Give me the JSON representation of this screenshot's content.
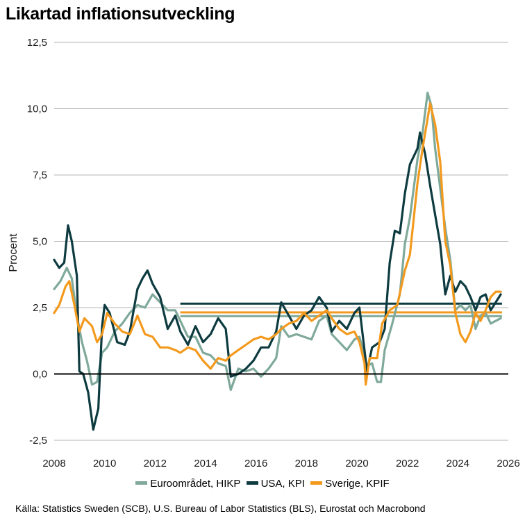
{
  "title": "Likartad inflationsutveckling",
  "source": "Källa: Statistics Sweden (SCB), U.S. Bureau of Labor Statistics (BLS), Eurostat och Macrobond",
  "chart_data": {
    "type": "line",
    "ylabel": "Procent",
    "xlabel": "",
    "xlim": [
      2008,
      2026
    ],
    "ylim": [
      -2.5,
      12.5
    ],
    "x_ticks": [
      "2008",
      "2010",
      "2012",
      "2014",
      "2016",
      "2018",
      "2020",
      "2022",
      "2024",
      "2026"
    ],
    "y_ticks": [
      "12,5",
      "10,0",
      "7,5",
      "5,0",
      "2,5",
      "0,0",
      "-2,5"
    ],
    "grid": "horizontal",
    "legend_position": "bottom",
    "series": [
      {
        "name": "Euroområdet, HIKP",
        "color": "#7fa99a",
        "points": [
          [
            2008.0,
            3.2
          ],
          [
            2008.25,
            3.5
          ],
          [
            2008.5,
            4.0
          ],
          [
            2008.7,
            3.6
          ],
          [
            2008.9,
            2.2
          ],
          [
            2009.1,
            1.2
          ],
          [
            2009.3,
            0.5
          ],
          [
            2009.5,
            -0.4
          ],
          [
            2009.7,
            -0.3
          ],
          [
            2009.9,
            0.8
          ],
          [
            2010.1,
            1.0
          ],
          [
            2010.4,
            1.6
          ],
          [
            2010.7,
            1.9
          ],
          [
            2011.0,
            2.3
          ],
          [
            2011.3,
            2.6
          ],
          [
            2011.6,
            2.5
          ],
          [
            2011.9,
            3.0
          ],
          [
            2012.2,
            2.7
          ],
          [
            2012.5,
            2.4
          ],
          [
            2012.8,
            2.4
          ],
          [
            2013.0,
            2.0
          ],
          [
            2013.3,
            1.4
          ],
          [
            2013.6,
            1.4
          ],
          [
            2013.9,
            0.8
          ],
          [
            2014.2,
            0.7
          ],
          [
            2014.5,
            0.4
          ],
          [
            2014.8,
            0.3
          ],
          [
            2015.0,
            -0.6
          ],
          [
            2015.3,
            0.2
          ],
          [
            2015.6,
            0.1
          ],
          [
            2015.9,
            0.2
          ],
          [
            2016.2,
            -0.1
          ],
          [
            2016.5,
            0.2
          ],
          [
            2016.8,
            0.6
          ],
          [
            2017.0,
            1.8
          ],
          [
            2017.3,
            1.4
          ],
          [
            2017.6,
            1.5
          ],
          [
            2017.9,
            1.4
          ],
          [
            2018.2,
            1.3
          ],
          [
            2018.5,
            2.0
          ],
          [
            2018.8,
            2.2
          ],
          [
            2019.0,
            1.5
          ],
          [
            2019.3,
            1.2
          ],
          [
            2019.6,
            0.9
          ],
          [
            2019.9,
            1.3
          ],
          [
            2020.1,
            1.4
          ],
          [
            2020.4,
            0.3
          ],
          [
            2020.6,
            0.4
          ],
          [
            2020.8,
            -0.3
          ],
          [
            2020.95,
            -0.3
          ],
          [
            2021.1,
            0.9
          ],
          [
            2021.4,
            1.9
          ],
          [
            2021.7,
            3.0
          ],
          [
            2021.9,
            4.9
          ],
          [
            2022.1,
            5.9
          ],
          [
            2022.4,
            8.1
          ],
          [
            2022.6,
            9.1
          ],
          [
            2022.8,
            10.6
          ],
          [
            2022.95,
            10.1
          ],
          [
            2023.1,
            8.5
          ],
          [
            2023.3,
            7.0
          ],
          [
            2023.5,
            5.5
          ],
          [
            2023.7,
            4.3
          ],
          [
            2023.9,
            2.4
          ],
          [
            2024.1,
            2.6
          ],
          [
            2024.3,
            2.4
          ],
          [
            2024.5,
            2.6
          ],
          [
            2024.7,
            1.7
          ],
          [
            2024.9,
            2.2
          ],
          [
            2025.1,
            2.3
          ],
          [
            2025.3,
            1.9
          ],
          [
            2025.5,
            2.0
          ],
          [
            2025.7,
            2.1
          ]
        ]
      },
      {
        "name": "USA, KPI",
        "color": "#0d3b40",
        "points": [
          [
            2008.0,
            4.3
          ],
          [
            2008.2,
            4.0
          ],
          [
            2008.4,
            4.2
          ],
          [
            2008.55,
            5.6
          ],
          [
            2008.7,
            5.0
          ],
          [
            2008.9,
            3.7
          ],
          [
            2009.0,
            0.1
          ],
          [
            2009.15,
            0.0
          ],
          [
            2009.35,
            -0.7
          ],
          [
            2009.55,
            -2.1
          ],
          [
            2009.75,
            -1.3
          ],
          [
            2009.9,
            1.8
          ],
          [
            2010.0,
            2.6
          ],
          [
            2010.2,
            2.3
          ],
          [
            2010.5,
            1.2
          ],
          [
            2010.8,
            1.1
          ],
          [
            2011.0,
            1.6
          ],
          [
            2011.3,
            3.2
          ],
          [
            2011.5,
            3.6
          ],
          [
            2011.7,
            3.9
          ],
          [
            2011.9,
            3.4
          ],
          [
            2012.2,
            2.9
          ],
          [
            2012.5,
            1.7
          ],
          [
            2012.8,
            2.2
          ],
          [
            2013.0,
            1.6
          ],
          [
            2013.3,
            1.1
          ],
          [
            2013.6,
            1.8
          ],
          [
            2013.9,
            1.2
          ],
          [
            2014.2,
            1.5
          ],
          [
            2014.5,
            2.1
          ],
          [
            2014.8,
            1.7
          ],
          [
            2015.0,
            -0.1
          ],
          [
            2015.3,
            0.0
          ],
          [
            2015.6,
            0.2
          ],
          [
            2015.9,
            0.5
          ],
          [
            2016.2,
            1.0
          ],
          [
            2016.5,
            1.0
          ],
          [
            2016.8,
            1.6
          ],
          [
            2017.0,
            2.7
          ],
          [
            2017.3,
            2.2
          ],
          [
            2017.6,
            1.7
          ],
          [
            2017.9,
            2.2
          ],
          [
            2018.2,
            2.4
          ],
          [
            2018.5,
            2.9
          ],
          [
            2018.8,
            2.5
          ],
          [
            2019.0,
            1.6
          ],
          [
            2019.3,
            2.0
          ],
          [
            2019.6,
            1.7
          ],
          [
            2019.9,
            2.3
          ],
          [
            2020.1,
            2.5
          ],
          [
            2020.4,
            0.1
          ],
          [
            2020.6,
            1.0
          ],
          [
            2020.9,
            1.2
          ],
          [
            2021.1,
            1.7
          ],
          [
            2021.3,
            4.2
          ],
          [
            2021.5,
            5.4
          ],
          [
            2021.7,
            5.3
          ],
          [
            2021.9,
            6.8
          ],
          [
            2022.1,
            7.9
          ],
          [
            2022.4,
            8.5
          ],
          [
            2022.5,
            9.1
          ],
          [
            2022.7,
            8.3
          ],
          [
            2022.9,
            7.1
          ],
          [
            2023.1,
            6.0
          ],
          [
            2023.3,
            4.9
          ],
          [
            2023.5,
            3.0
          ],
          [
            2023.7,
            3.7
          ],
          [
            2023.9,
            3.1
          ],
          [
            2024.1,
            3.5
          ],
          [
            2024.3,
            3.3
          ],
          [
            2024.5,
            2.9
          ],
          [
            2024.7,
            2.4
          ],
          [
            2024.9,
            2.9
          ],
          [
            2025.1,
            3.0
          ],
          [
            2025.3,
            2.4
          ],
          [
            2025.5,
            2.7
          ],
          [
            2025.7,
            3.0
          ]
        ]
      },
      {
        "name": "Sverige, KPIF",
        "color": "#f39a1e",
        "points": [
          [
            2008.0,
            2.3
          ],
          [
            2008.2,
            2.6
          ],
          [
            2008.45,
            3.3
          ],
          [
            2008.6,
            3.5
          ],
          [
            2008.8,
            2.6
          ],
          [
            2009.0,
            1.6
          ],
          [
            2009.2,
            2.1
          ],
          [
            2009.5,
            1.8
          ],
          [
            2009.7,
            1.2
          ],
          [
            2009.9,
            1.5
          ],
          [
            2010.1,
            2.3
          ],
          [
            2010.4,
            1.9
          ],
          [
            2010.7,
            1.6
          ],
          [
            2011.0,
            1.5
          ],
          [
            2011.3,
            2.2
          ],
          [
            2011.6,
            1.5
          ],
          [
            2011.9,
            1.4
          ],
          [
            2012.2,
            1.0
          ],
          [
            2012.5,
            1.0
          ],
          [
            2012.8,
            0.9
          ],
          [
            2013.0,
            0.8
          ],
          [
            2013.3,
            1.0
          ],
          [
            2013.6,
            0.9
          ],
          [
            2013.9,
            0.5
          ],
          [
            2014.2,
            0.2
          ],
          [
            2014.5,
            0.6
          ],
          [
            2014.8,
            0.5
          ],
          [
            2015.0,
            0.7
          ],
          [
            2015.3,
            0.9
          ],
          [
            2015.6,
            1.1
          ],
          [
            2015.9,
            1.3
          ],
          [
            2016.2,
            1.4
          ],
          [
            2016.5,
            1.3
          ],
          [
            2016.8,
            1.5
          ],
          [
            2017.0,
            1.7
          ],
          [
            2017.3,
            1.9
          ],
          [
            2017.6,
            2.0
          ],
          [
            2017.9,
            2.3
          ],
          [
            2018.2,
            2.0
          ],
          [
            2018.5,
            2.2
          ],
          [
            2018.8,
            2.4
          ],
          [
            2019.0,
            2.1
          ],
          [
            2019.3,
            1.7
          ],
          [
            2019.6,
            1.5
          ],
          [
            2019.9,
            1.6
          ],
          [
            2020.1,
            1.2
          ],
          [
            2020.3,
            0.4
          ],
          [
            2020.35,
            -0.4
          ],
          [
            2020.5,
            0.6
          ],
          [
            2020.8,
            0.6
          ],
          [
            2021.0,
            1.9
          ],
          [
            2021.3,
            2.4
          ],
          [
            2021.6,
            2.6
          ],
          [
            2021.9,
            3.9
          ],
          [
            2022.1,
            4.5
          ],
          [
            2022.4,
            7.2
          ],
          [
            2022.6,
            8.5
          ],
          [
            2022.9,
            10.2
          ],
          [
            2023.1,
            9.4
          ],
          [
            2023.3,
            8.0
          ],
          [
            2023.5,
            5.0
          ],
          [
            2023.7,
            4.1
          ],
          [
            2023.9,
            2.3
          ],
          [
            2024.1,
            1.5
          ],
          [
            2024.3,
            1.2
          ],
          [
            2024.5,
            1.6
          ],
          [
            2024.7,
            2.3
          ],
          [
            2024.9,
            2.0
          ],
          [
            2025.1,
            2.4
          ],
          [
            2025.3,
            2.9
          ],
          [
            2025.5,
            3.1
          ],
          [
            2025.7,
            3.1
          ]
        ]
      }
    ],
    "averages": [
      {
        "series": "USA, KPI",
        "value": 2.65,
        "color": "#0d3b40",
        "from": 2013.0,
        "to": 2025.75
      },
      {
        "series": "Sverige, KPIF",
        "value": 2.32,
        "color": "#f39a1e",
        "from": 2013.0,
        "to": 2025.75
      },
      {
        "series": "Euroområdet, HIKP",
        "value": 2.18,
        "color": "#7fa99a",
        "from": 2013.0,
        "to": 2025.75
      }
    ]
  }
}
